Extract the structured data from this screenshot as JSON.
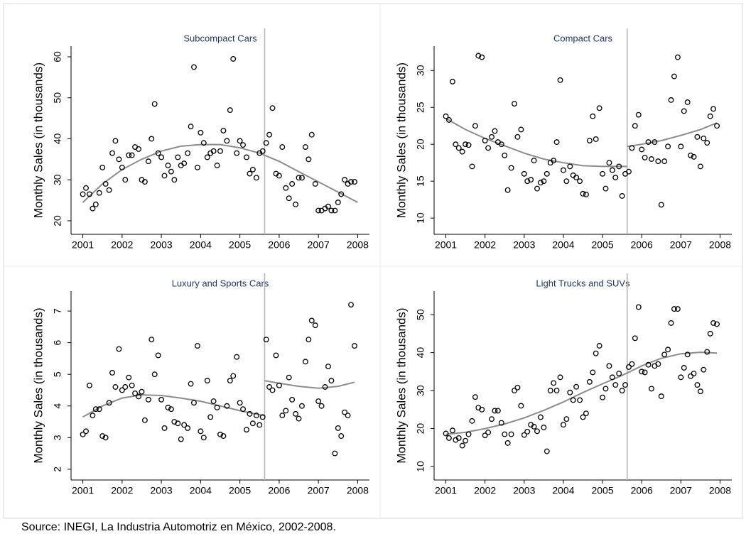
{
  "source": "Source: INEGI, La Industria Automotriz en México, 2002-2008.",
  "chart_data": [
    {
      "type": "scatter",
      "title": "Subcompact Cars",
      "ylabel": "Monthly Sales (in thousands)",
      "xlim": [
        2000.7,
        2008.3
      ],
      "ylim": [
        16.7,
        62.6
      ],
      "xticks": [
        2001,
        2002,
        2003,
        2004,
        2005,
        2006,
        2007,
        2008
      ],
      "yticks": [
        20,
        30,
        40,
        50,
        60
      ],
      "x": [
        2001,
        2001.08,
        2001.17,
        2001.25,
        2001.33,
        2001.42,
        2001.5,
        2001.58,
        2001.67,
        2001.75,
        2001.83,
        2001.92,
        2002,
        2002.08,
        2002.17,
        2002.25,
        2002.33,
        2002.42,
        2002.5,
        2002.58,
        2002.67,
        2002.75,
        2002.83,
        2002.92,
        2003,
        2003.08,
        2003.17,
        2003.25,
        2003.33,
        2003.42,
        2003.5,
        2003.58,
        2003.67,
        2003.75,
        2003.83,
        2003.92,
        2004,
        2004.08,
        2004.17,
        2004.25,
        2004.33,
        2004.42,
        2004.5,
        2004.58,
        2004.67,
        2004.75,
        2004.83,
        2004.92,
        2005,
        2005.08,
        2005.17,
        2005.25,
        2005.33,
        2005.42,
        2005.5,
        2005.58,
        2005.67,
        2005.75,
        2005.83,
        2005.92,
        2006,
        2006.08,
        2006.17,
        2006.25,
        2006.33,
        2006.42,
        2006.5,
        2006.58,
        2006.67,
        2006.75,
        2006.83,
        2006.92,
        2007,
        2007.08,
        2007.17,
        2007.25,
        2007.33,
        2007.42,
        2007.5,
        2007.58,
        2007.67,
        2007.75,
        2007.83,
        2007.92
      ],
      "values": [
        26.5,
        28,
        26.5,
        23,
        24,
        26.8,
        33,
        29,
        27.5,
        36.5,
        39.5,
        35,
        33,
        30,
        36,
        36,
        38,
        37.5,
        30,
        29.5,
        34.5,
        40,
        48.5,
        36.5,
        35.5,
        31,
        33.5,
        32,
        30,
        35.5,
        33.5,
        34,
        36.5,
        43,
        57.5,
        33,
        41.5,
        39,
        35.5,
        36.5,
        37,
        33.5,
        37,
        42,
        39.5,
        47,
        59.5,
        36.5,
        39.5,
        38.5,
        35.5,
        31.5,
        32.5,
        30.5,
        36.5,
        37,
        39,
        41,
        47.5,
        31.5,
        31,
        38,
        28,
        25.5,
        29,
        24,
        30.5,
        30.5,
        38,
        35,
        41,
        29,
        22.5,
        22.5,
        23,
        23.5,
        22.5,
        22.5,
        24.5,
        26.5,
        30,
        29,
        29.5,
        29.5
      ],
      "fit": {
        "x": [
          2001,
          2001.5,
          2002,
          2002.5,
          2003,
          2003.5,
          2004,
          2004.5,
          2005,
          2005.5,
          2006,
          2006.5,
          2007,
          2007.5,
          2008
        ],
        "values": [
          24.5,
          29,
          32.5,
          35,
          37,
          38.2,
          38.6,
          38.6,
          37.8,
          36.5,
          34.5,
          32,
          29.5,
          27,
          24.5
        ]
      },
      "vline": 2005.63,
      "marker_color": "#000000",
      "fit_color": "#8c8c8c"
    },
    {
      "type": "scatter",
      "title": "Compact Cars",
      "ylabel": "Monthly Sales (in thousands)",
      "xlim": [
        2000.7,
        2008.3
      ],
      "ylim": [
        7.8,
        33.3
      ],
      "xticks": [
        2001,
        2002,
        2003,
        2004,
        2005,
        2006,
        2007,
        2008
      ],
      "yticks": [
        10,
        15,
        20,
        25,
        30
      ],
      "x": [
        2001,
        2001.08,
        2001.17,
        2001.25,
        2001.33,
        2001.42,
        2001.5,
        2001.58,
        2001.67,
        2001.75,
        2001.83,
        2001.92,
        2002,
        2002.08,
        2002.17,
        2002.25,
        2002.33,
        2002.42,
        2002.5,
        2002.58,
        2002.67,
        2002.75,
        2002.83,
        2002.92,
        2003,
        2003.08,
        2003.17,
        2003.25,
        2003.33,
        2003.42,
        2003.5,
        2003.58,
        2003.67,
        2003.75,
        2003.83,
        2003.92,
        2004,
        2004.08,
        2004.17,
        2004.25,
        2004.33,
        2004.42,
        2004.5,
        2004.58,
        2004.67,
        2004.75,
        2004.83,
        2004.92,
        2005,
        2005.08,
        2005.17,
        2005.25,
        2005.33,
        2005.42,
        2005.5,
        2005.58,
        2005.67,
        2005.75,
        2005.83,
        2005.92,
        2006,
        2006.08,
        2006.17,
        2006.25,
        2006.33,
        2006.42,
        2006.5,
        2006.58,
        2006.67,
        2006.75,
        2006.83,
        2006.92,
        2007,
        2007.08,
        2007.17,
        2007.25,
        2007.33,
        2007.42,
        2007.5,
        2007.58,
        2007.67,
        2007.75,
        2007.83,
        2007.92
      ],
      "values": [
        23.8,
        23.3,
        28.5,
        20,
        19.5,
        19,
        20,
        19.9,
        17,
        22.5,
        32,
        31.8,
        20.5,
        19.5,
        21,
        21.8,
        20.3,
        20,
        18.5,
        13.8,
        16.8,
        25.5,
        21,
        22,
        16,
        15,
        15.2,
        17.8,
        14,
        14.8,
        15,
        16,
        17.5,
        17.8,
        20.3,
        28.7,
        16.5,
        15,
        17,
        15.8,
        15.5,
        15,
        13.3,
        13.2,
        20.5,
        23.8,
        20.7,
        24.9,
        16,
        14,
        17.5,
        16.5,
        15.5,
        17,
        13,
        16,
        16.3,
        19.5,
        22.5,
        24,
        19.3,
        18.2,
        20.3,
        18,
        20.3,
        17.7,
        11.8,
        17.7,
        19.7,
        26,
        29.2,
        31.8,
        19.7,
        24.5,
        25.7,
        18.5,
        18.3,
        21,
        17,
        20.8,
        20.2,
        23.8,
        24.8,
        22.5
      ],
      "fit": {
        "x": [
          2001,
          2001.5,
          2002,
          2002.5,
          2003,
          2003.5,
          2004,
          2004.5,
          2005,
          2005.5,
          2005.63,
          2005.63,
          2005.63,
          2006,
          2006.5,
          2007,
          2007.5,
          2007.92
        ],
        "values": [
          23.5,
          22,
          20.8,
          19.8,
          18.8,
          18,
          17.5,
          17.1,
          17,
          17,
          17,
          null,
          19.7,
          20,
          20.5,
          21.2,
          22,
          22.9
        ]
      },
      "vline": 2005.63,
      "marker_color": "#000000",
      "fit_color": "#8c8c8c"
    },
    {
      "type": "scatter",
      "title": "Luxury and Sports Cars",
      "ylabel": "Monthly Sales (in thousands)",
      "xlim": [
        2000.7,
        2008.3
      ],
      "ylim": [
        1.66,
        7.63
      ],
      "xticks": [
        2001,
        2002,
        2003,
        2004,
        2005,
        2006,
        2007,
        2008
      ],
      "yticks": [
        2,
        3,
        4,
        5,
        6,
        7
      ],
      "x": [
        2001,
        2001.08,
        2001.17,
        2001.25,
        2001.33,
        2001.42,
        2001.5,
        2001.58,
        2001.67,
        2001.75,
        2001.83,
        2001.92,
        2002,
        2002.08,
        2002.17,
        2002.25,
        2002.33,
        2002.42,
        2002.5,
        2002.58,
        2002.67,
        2002.75,
        2002.83,
        2002.92,
        2003,
        2003.08,
        2003.17,
        2003.25,
        2003.33,
        2003.42,
        2003.5,
        2003.58,
        2003.67,
        2003.75,
        2003.83,
        2003.92,
        2004,
        2004.08,
        2004.17,
        2004.25,
        2004.33,
        2004.42,
        2004.5,
        2004.58,
        2004.67,
        2004.75,
        2004.83,
        2004.92,
        2005,
        2005.08,
        2005.17,
        2005.25,
        2005.33,
        2005.42,
        2005.5,
        2005.58,
        2005.67,
        2005.75,
        2005.83,
        2005.92,
        2006,
        2006.08,
        2006.17,
        2006.25,
        2006.33,
        2006.42,
        2006.5,
        2006.58,
        2006.67,
        2006.75,
        2006.83,
        2006.92,
        2007,
        2007.08,
        2007.17,
        2007.25,
        2007.33,
        2007.42,
        2007.5,
        2007.58,
        2007.67,
        2007.75,
        2007.83,
        2007.92
      ],
      "values": [
        3.1,
        3.2,
        4.65,
        3.7,
        3.9,
        3.9,
        3.05,
        3,
        4.1,
        5.05,
        4.6,
        5.8,
        4.5,
        4.6,
        4.9,
        4.65,
        4.4,
        4.3,
        4.45,
        3.55,
        4.2,
        6.1,
        5,
        5.6,
        4.2,
        3.3,
        3.95,
        3.9,
        3.5,
        3.45,
        2.95,
        3.4,
        3.3,
        4.7,
        4.1,
        5.9,
        3.2,
        3,
        4.8,
        3.65,
        4.15,
        3.95,
        3.1,
        3.05,
        4,
        4.8,
        4.95,
        5.55,
        4.1,
        3.9,
        3.25,
        3.75,
        3.45,
        3.7,
        3.4,
        3.65,
        6.1,
        4.6,
        4.5,
        5.6,
        4.65,
        3.7,
        3.85,
        4.9,
        4.2,
        3.75,
        3.6,
        4,
        5.4,
        6.1,
        6.7,
        6.55,
        4.15,
        4,
        4.6,
        5.25,
        4.8,
        2.5,
        3.3,
        3.05,
        3.8,
        3.7,
        7.2,
        5.9
      ],
      "fit": {
        "x": [
          2001,
          2001.5,
          2002,
          2002.5,
          2003,
          2003.5,
          2004,
          2004.5,
          2005,
          2005.5,
          2005.63,
          2005.63,
          2005.63,
          2006,
          2006.5,
          2007,
          2007.5,
          2007.92
        ],
        "values": [
          3.65,
          4,
          4.25,
          4.35,
          4.33,
          4.25,
          4.15,
          4,
          3.85,
          3.72,
          3.7,
          null,
          4.8,
          4.72,
          4.62,
          4.56,
          4.62,
          4.75
        ]
      },
      "vline": 2005.63,
      "marker_color": "#000000",
      "fit_color": "#8c8c8c"
    },
    {
      "type": "scatter",
      "title": "Light Trucks and SUVs",
      "ylabel": "Monthly Sales (in thousands)",
      "xlim": [
        2000.7,
        2008.3
      ],
      "ylim": [
        6.45,
        56.2
      ],
      "xticks": [
        2001,
        2002,
        2003,
        2004,
        2005,
        2006,
        2007,
        2008
      ],
      "yticks": [
        10,
        20,
        30,
        40,
        50
      ],
      "x": [
        2001,
        2001.08,
        2001.17,
        2001.25,
        2001.33,
        2001.42,
        2001.5,
        2001.58,
        2001.67,
        2001.75,
        2001.83,
        2001.92,
        2002,
        2002.08,
        2002.17,
        2002.25,
        2002.33,
        2002.42,
        2002.5,
        2002.58,
        2002.67,
        2002.75,
        2002.83,
        2002.92,
        2003,
        2003.08,
        2003.17,
        2003.25,
        2003.33,
        2003.42,
        2003.5,
        2003.58,
        2003.67,
        2003.75,
        2003.83,
        2003.92,
        2004,
        2004.08,
        2004.17,
        2004.25,
        2004.33,
        2004.42,
        2004.5,
        2004.58,
        2004.67,
        2004.75,
        2004.83,
        2004.92,
        2005,
        2005.08,
        2005.17,
        2005.25,
        2005.33,
        2005.42,
        2005.5,
        2005.58,
        2005.67,
        2005.75,
        2005.83,
        2005.92,
        2006,
        2006.08,
        2006.17,
        2006.25,
        2006.33,
        2006.42,
        2006.5,
        2006.58,
        2006.67,
        2006.75,
        2006.83,
        2006.92,
        2007,
        2007.08,
        2007.17,
        2007.25,
        2007.33,
        2007.42,
        2007.5,
        2007.58,
        2007.67,
        2007.75,
        2007.83,
        2007.92
      ],
      "values": [
        18.7,
        17.5,
        19.5,
        17,
        17.5,
        15.5,
        16.8,
        18.5,
        22,
        28.3,
        25.5,
        25,
        18.2,
        19,
        22.5,
        24.7,
        24.7,
        21.5,
        18.5,
        16.2,
        18.5,
        30,
        30.8,
        26,
        18.3,
        19.2,
        21,
        20.5,
        19.3,
        23,
        20.3,
        14,
        30,
        32,
        30,
        33.5,
        21,
        22.5,
        29.5,
        27.5,
        31,
        27.5,
        23,
        24,
        32.3,
        34.8,
        39.8,
        41.8,
        28.2,
        30.5,
        36.5,
        33.5,
        31.5,
        34.5,
        30,
        31.5,
        36.2,
        37,
        43.8,
        52,
        35,
        34.8,
        36.8,
        30.5,
        36.5,
        37,
        28.5,
        39.5,
        40.8,
        47.8,
        51.5,
        51.5,
        33.5,
        36,
        39.5,
        33.8,
        34.5,
        31.5,
        29.8,
        35.5,
        40.2,
        45,
        47.8,
        47.5
      ],
      "fit": {
        "x": [
          2001,
          2001.5,
          2002,
          2002.5,
          2003,
          2003.5,
          2004,
          2004.5,
          2005,
          2005.5,
          2006,
          2006.5,
          2007,
          2007.5,
          2007.92
        ],
        "values": [
          18.5,
          19,
          20,
          21.2,
          22.8,
          24.8,
          27,
          29.5,
          31.8,
          34,
          36.5,
          38.5,
          39.7,
          40.1,
          39.9
        ]
      },
      "vline": 2005.63,
      "marker_color": "#000000",
      "fit_color": "#8c8c8c"
    }
  ]
}
